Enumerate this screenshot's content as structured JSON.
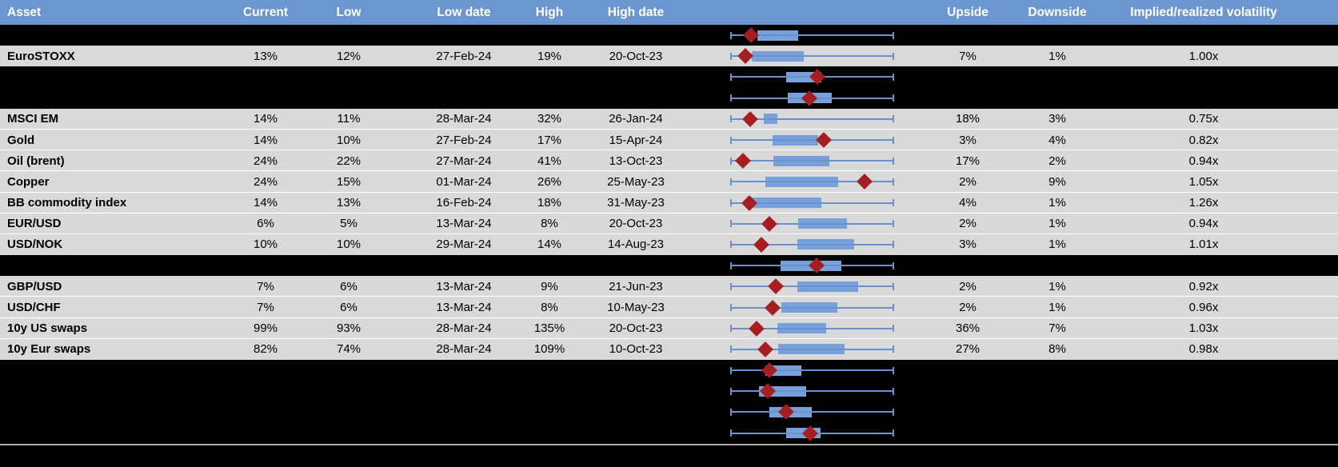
{
  "columns": {
    "asset": "Asset",
    "current": "Current",
    "low": "Low",
    "low_date": "Low date",
    "high": "High",
    "high_date": "High date",
    "upside": "Upside",
    "downside": "Downside",
    "impl_real": "Implied/realized volatility"
  },
  "colors": {
    "header_bg": "#6C96D1",
    "row_bg": "#D9D9D9",
    "redacted_bg": "#000000",
    "box_fill": "#77A1DA",
    "whisker": "#6A91CC",
    "marker": "#A51E22",
    "separator": "#A8A8A8",
    "hairline": "#FFFFFF"
  },
  "chart_data": {
    "type": "table",
    "note_type": "each row shows a horizontal box-and-whisker range plot; whiskers span the full low-high range (0 to 1 normalized), box is the interquartile band, diamond is the current level marker"
  },
  "rows": [
    {
      "type": "redacted",
      "boxplot": {
        "box": [
          0.166,
          0.415
        ],
        "marker": 0.127
      }
    },
    {
      "type": "data",
      "asset": "EuroSTOXX",
      "current": "13%",
      "low": "12%",
      "low_date": "27-Feb-24",
      "high": "19%",
      "high_date": "20-Oct-23",
      "upside": "7%",
      "downside": "1%",
      "impl_real": "1.00x",
      "boxplot": {
        "box": [
          0.132,
          0.449
        ],
        "marker": 0.093
      }
    },
    {
      "type": "redacted",
      "boxplot": {
        "box": [
          0.341,
          0.556
        ],
        "marker": 0.532
      }
    },
    {
      "type": "redacted",
      "boxplot": {
        "box": [
          0.351,
          0.62
        ],
        "marker": 0.483
      }
    },
    {
      "type": "data",
      "asset": "MSCI EM",
      "current": "14%",
      "low": "11%",
      "low_date": "28-Mar-24",
      "high": "32%",
      "high_date": "26-Jan-24",
      "upside": "18%",
      "downside": "3%",
      "impl_real": "0.75x",
      "boxplot": {
        "box": [
          0.205,
          0.288
        ],
        "marker": 0.122
      }
    },
    {
      "type": "data",
      "asset": "Gold",
      "current": "14%",
      "low": "10%",
      "low_date": "27-Feb-24",
      "high": "17%",
      "high_date": "15-Apr-24",
      "upside": "3%",
      "downside": "4%",
      "impl_real": "0.82x",
      "boxplot": {
        "box": [
          0.259,
          0.537
        ],
        "marker": 0.571
      }
    },
    {
      "type": "data",
      "asset": "Oil (brent)",
      "current": "24%",
      "low": "22%",
      "low_date": "27-Mar-24",
      "high": "41%",
      "high_date": "13-Oct-23",
      "upside": "17%",
      "downside": "2%",
      "impl_real": "0.94x",
      "boxplot": {
        "box": [
          0.263,
          0.605
        ],
        "marker": 0.078
      }
    },
    {
      "type": "data",
      "asset": "Copper",
      "current": "24%",
      "low": "15%",
      "low_date": "01-Mar-24",
      "high": "26%",
      "high_date": "25-May-23",
      "upside": "2%",
      "downside": "9%",
      "impl_real": "1.05x",
      "boxplot": {
        "box": [
          0.215,
          0.659
        ],
        "marker": 0.82
      }
    },
    {
      "type": "data",
      "asset": "BB commodity index",
      "current": "14%",
      "low": "13%",
      "low_date": "16-Feb-24",
      "high": "18%",
      "high_date": "31-May-23",
      "upside": "4%",
      "downside": "1%",
      "impl_real": "1.26x",
      "boxplot": {
        "box": [
          0.117,
          0.556
        ],
        "marker": 0.117
      }
    },
    {
      "type": "data",
      "asset": "EUR/USD",
      "current": "6%",
      "low": "5%",
      "low_date": "13-Mar-24",
      "high": "8%",
      "high_date": "20-Oct-23",
      "upside": "2%",
      "downside": "1%",
      "impl_real": "0.94x",
      "boxplot": {
        "box": [
          0.415,
          0.712
        ],
        "marker": 0.239
      }
    },
    {
      "type": "data",
      "asset": "USD/NOK",
      "current": "10%",
      "low": "10%",
      "low_date": "29-Mar-24",
      "high": "14%",
      "high_date": "14-Aug-23",
      "upside": "3%",
      "downside": "1%",
      "impl_real": "1.01x",
      "boxplot": {
        "box": [
          0.41,
          0.756
        ],
        "marker": 0.19
      }
    },
    {
      "type": "redacted",
      "boxplot": {
        "box": [
          0.307,
          0.678
        ],
        "marker": 0.527
      }
    },
    {
      "type": "data",
      "asset": "GBP/USD",
      "current": "7%",
      "low": "6%",
      "low_date": "13-Mar-24",
      "high": "9%",
      "high_date": "21-Jun-23",
      "upside": "2%",
      "downside": "1%",
      "impl_real": "0.92x",
      "boxplot": {
        "box": [
          0.41,
          0.78
        ],
        "marker": 0.278
      }
    },
    {
      "type": "data",
      "asset": "USD/CHF",
      "current": "7%",
      "low": "6%",
      "low_date": "13-Mar-24",
      "high": "8%",
      "high_date": "10-May-23",
      "upside": "2%",
      "downside": "1%",
      "impl_real": "0.96x",
      "boxplot": {
        "box": [
          0.312,
          0.654
        ],
        "marker": 0.259
      }
    },
    {
      "type": "data",
      "asset": "10y US swaps",
      "current": "99%",
      "low": "93%",
      "low_date": "28-Mar-24",
      "high": "135%",
      "high_date": "20-Oct-23",
      "upside": "36%",
      "downside": "7%",
      "impl_real": "1.03x",
      "boxplot": {
        "box": [
          0.288,
          0.585
        ],
        "marker": 0.161
      }
    },
    {
      "type": "data",
      "asset": "10y Eur swaps",
      "current": "82%",
      "low": "74%",
      "low_date": "28-Mar-24",
      "high": "109%",
      "high_date": "10-Oct-23",
      "upside": "27%",
      "downside": "8%",
      "impl_real": "0.98x",
      "boxplot": {
        "box": [
          0.293,
          0.698
        ],
        "marker": 0.215
      }
    },
    {
      "type": "redacted",
      "boxplot": {
        "box": [
          0.215,
          0.434
        ],
        "marker": 0.239
      }
    },
    {
      "type": "redacted",
      "boxplot": {
        "box": [
          0.176,
          0.463
        ],
        "marker": 0.229
      }
    },
    {
      "type": "redacted",
      "boxplot": {
        "box": [
          0.239,
          0.498
        ],
        "marker": 0.341
      }
    },
    {
      "type": "redacted",
      "boxplot": {
        "box": [
          0.341,
          0.551
        ],
        "marker": 0.488
      }
    }
  ]
}
